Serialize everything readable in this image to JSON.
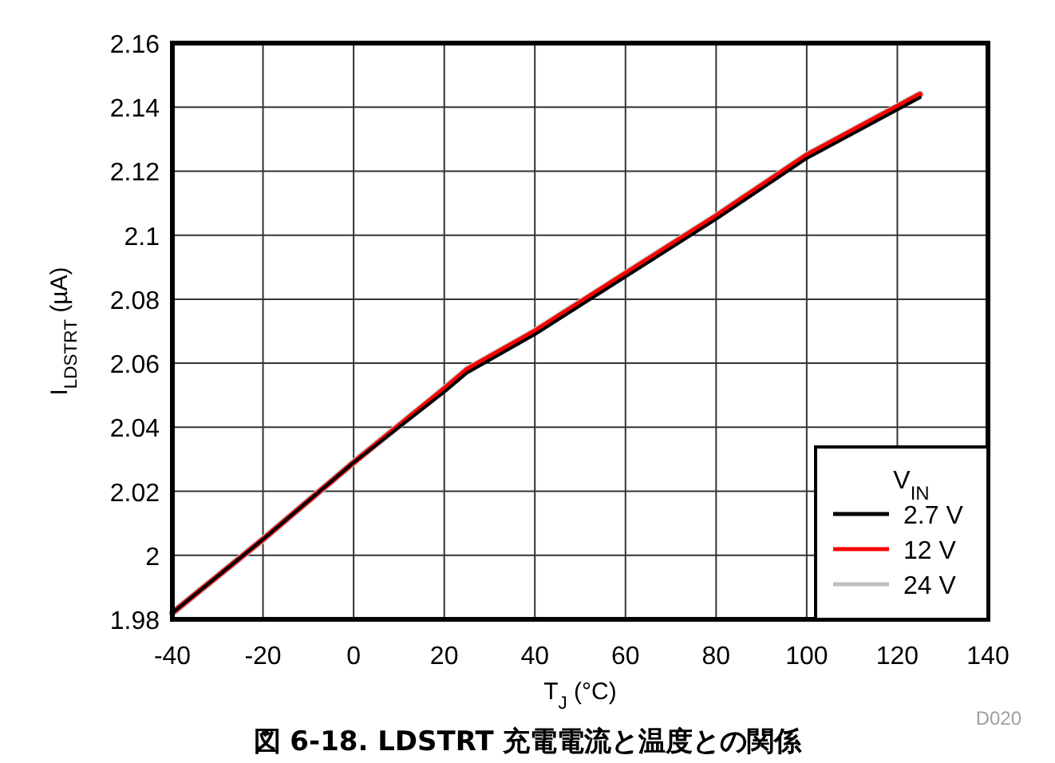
{
  "chart_data": {
    "type": "line",
    "title": "図 6-18. LDSTRT 充電電流と温度との関係",
    "xlabel": "T$_{J}$ (°C)",
    "ylabel": "I$_{LDSTRT}$ (µA)",
    "legend_title": "V$_{IN}$",
    "x": [
      -40,
      -20,
      0,
      20,
      25,
      40,
      60,
      80,
      100,
      125
    ],
    "series": [
      {
        "name": "2.7 V",
        "color": "#000000",
        "values": [
          1.982,
          2.005,
          2.029,
          2.051,
          2.057,
          2.069,
          2.087,
          2.105,
          2.124,
          2.143
        ]
      },
      {
        "name": "12 V",
        "color": "#ff0000",
        "values": [
          1.982,
          2.005,
          2.029,
          2.052,
          2.058,
          2.07,
          2.088,
          2.106,
          2.125,
          2.144
        ]
      },
      {
        "name": "24 V",
        "color": "#bfbfbf",
        "values": [
          1.982,
          2.005,
          2.029,
          2.052,
          2.058,
          2.07,
          2.088,
          2.106,
          2.125,
          2.144
        ]
      }
    ],
    "xlim": [
      -40,
      140
    ],
    "xticks": [
      -40,
      -20,
      0,
      20,
      40,
      60,
      80,
      100,
      120,
      140
    ],
    "ylim": [
      1.98,
      2.16
    ],
    "yticks": [
      1.98,
      2,
      2.02,
      2.04,
      2.06,
      2.08,
      2.1,
      2.12,
      2.14,
      2.16
    ],
    "grid": true,
    "legend": "bottom right",
    "marker": "none",
    "line_style": "solid",
    "annotations": [
      "D020"
    ]
  }
}
